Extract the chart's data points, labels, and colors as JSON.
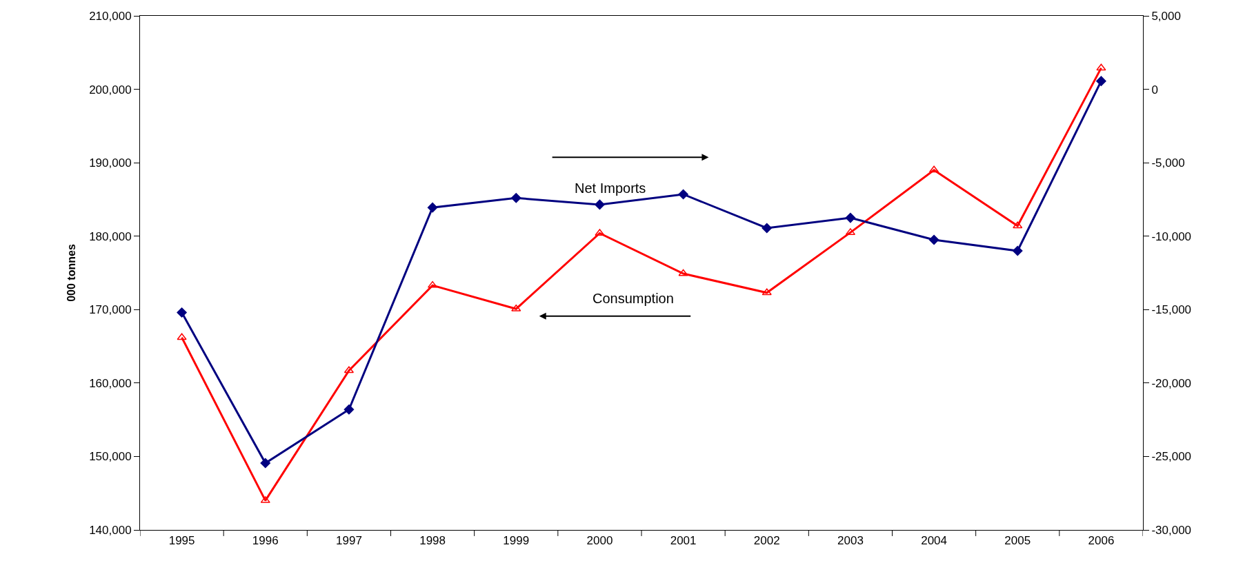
{
  "chart_data": {
    "type": "line",
    "ylabel": "000 tonnes",
    "categories": [
      "1995",
      "1996",
      "1997",
      "1998",
      "1999",
      "2000",
      "2001",
      "2002",
      "2003",
      "2004",
      "2005",
      "2006"
    ],
    "series": [
      {
        "name": null,
        "color": "#000080",
        "marker": "diamond",
        "axis": "y2",
        "values": [
          -15200,
          -25450,
          -21800,
          -8050,
          -7400,
          -7850,
          -7150,
          -9450,
          -8750,
          -10250,
          -11000,
          560
        ]
      },
      {
        "name": null,
        "color": "#ff0000",
        "marker": "triangle",
        "values": [
          166200,
          144000,
          161700,
          173300,
          170100,
          180400,
          174900,
          172300,
          180500,
          189000,
          181400,
          202900
        ]
      }
    ],
    "ylim": [
      140000,
      210000
    ],
    "yticks": [
      {
        "value": 140000,
        "label": "140,000"
      },
      {
        "value": 150000,
        "label": "150,000"
      },
      {
        "value": 160000,
        "label": "160,000"
      },
      {
        "value": 170000,
        "label": "170,000"
      },
      {
        "value": 180000,
        "label": "180,000"
      },
      {
        "value": 190000,
        "label": "190,000"
      },
      {
        "value": 200000,
        "label": "200,000"
      },
      {
        "value": 210000,
        "label": "210,000"
      }
    ],
    "y2lim": [
      -30000,
      5000
    ],
    "y2ticks": [
      {
        "value": -30000,
        "label": "-30,000"
      },
      {
        "value": -25000,
        "label": "-25,000"
      },
      {
        "value": -20000,
        "label": "-20,000"
      },
      {
        "value": -15000,
        "label": "-15,000"
      },
      {
        "value": -10000,
        "label": "-10,000"
      },
      {
        "value": -5000,
        "label": "-5,000"
      },
      {
        "value": 0,
        "label": "0"
      },
      {
        "value": 5000,
        "label": "5,000"
      }
    ],
    "annotations": [
      "Net Imports",
      "Consumption"
    ],
    "line_style": "solid"
  }
}
